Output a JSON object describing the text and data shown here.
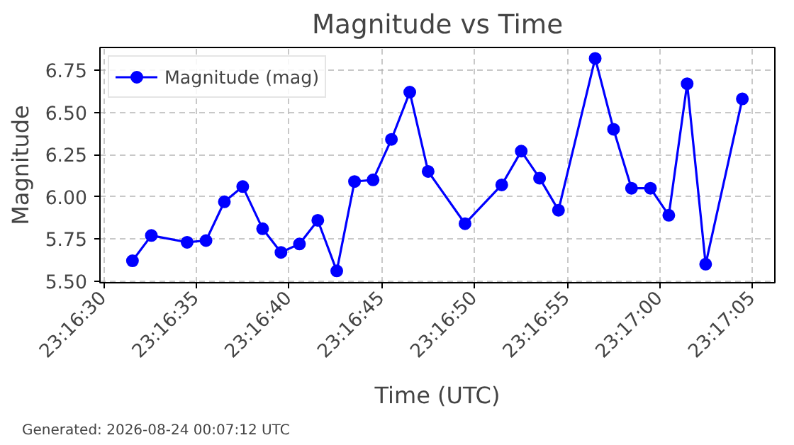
{
  "chart_data": {
    "type": "line",
    "title": "Magnitude vs Time",
    "xlabel": "Time (UTC)",
    "ylabel": "Magnitude",
    "x": [
      23.275431,
      23.275714,
      23.27625,
      23.276533,
      23.276808,
      23.277083,
      23.277381,
      23.277656,
      23.277933,
      23.278208,
      23.278492,
      23.278758,
      23.279036,
      23.279311,
      23.279586,
      23.279861,
      23.280414,
      23.280964,
      23.281256,
      23.281531,
      23.281814,
      23.282364,
      23.282639,
      23.282908,
      23.283192,
      23.283467,
      23.283742,
      23.284019,
      23.284569
    ],
    "series": [
      {
        "name": "Magnitude (mag)",
        "color": "#0000ff",
        "values": [
          5.62,
          5.77,
          5.73,
          5.74,
          5.97,
          6.06,
          5.81,
          5.67,
          5.72,
          5.86,
          5.56,
          6.09,
          6.1,
          6.34,
          6.62,
          6.15,
          5.84,
          6.07,
          6.27,
          6.11,
          5.92,
          6.82,
          6.4,
          6.05,
          6.05,
          5.89,
          6.67,
          5.6,
          6.58
        ]
      }
    ],
    "xlim": [
      23.274944,
      23.285056
    ],
    "ylim": [
      5.49,
      6.885
    ],
    "xticks": [
      {
        "value": 23.275,
        "label": "23:16:30"
      },
      {
        "value": 23.276389,
        "label": "23:16:35"
      },
      {
        "value": 23.277778,
        "label": "23:16:40"
      },
      {
        "value": 23.279167,
        "label": "23:16:45"
      },
      {
        "value": 23.280556,
        "label": "23:16:50"
      },
      {
        "value": 23.281944,
        "label": "23:16:55"
      },
      {
        "value": 23.283333,
        "label": "23:17:00"
      },
      {
        "value": 23.284722,
        "label": "23:17:05"
      }
    ],
    "yticks": [
      {
        "value": 5.5,
        "label": "5.50"
      },
      {
        "value": 5.75,
        "label": "5.75"
      },
      {
        "value": 6.0,
        "label": "6.00"
      },
      {
        "value": 6.25,
        "label": "6.25"
      },
      {
        "value": 6.5,
        "label": "6.50"
      },
      {
        "value": 6.75,
        "label": "6.75"
      }
    ],
    "grid": true,
    "legend": "top left",
    "marker": "circle",
    "line_style": "solid",
    "annotations": [
      "Generated: 2026-08-24 00:07:12 UTC"
    ]
  }
}
